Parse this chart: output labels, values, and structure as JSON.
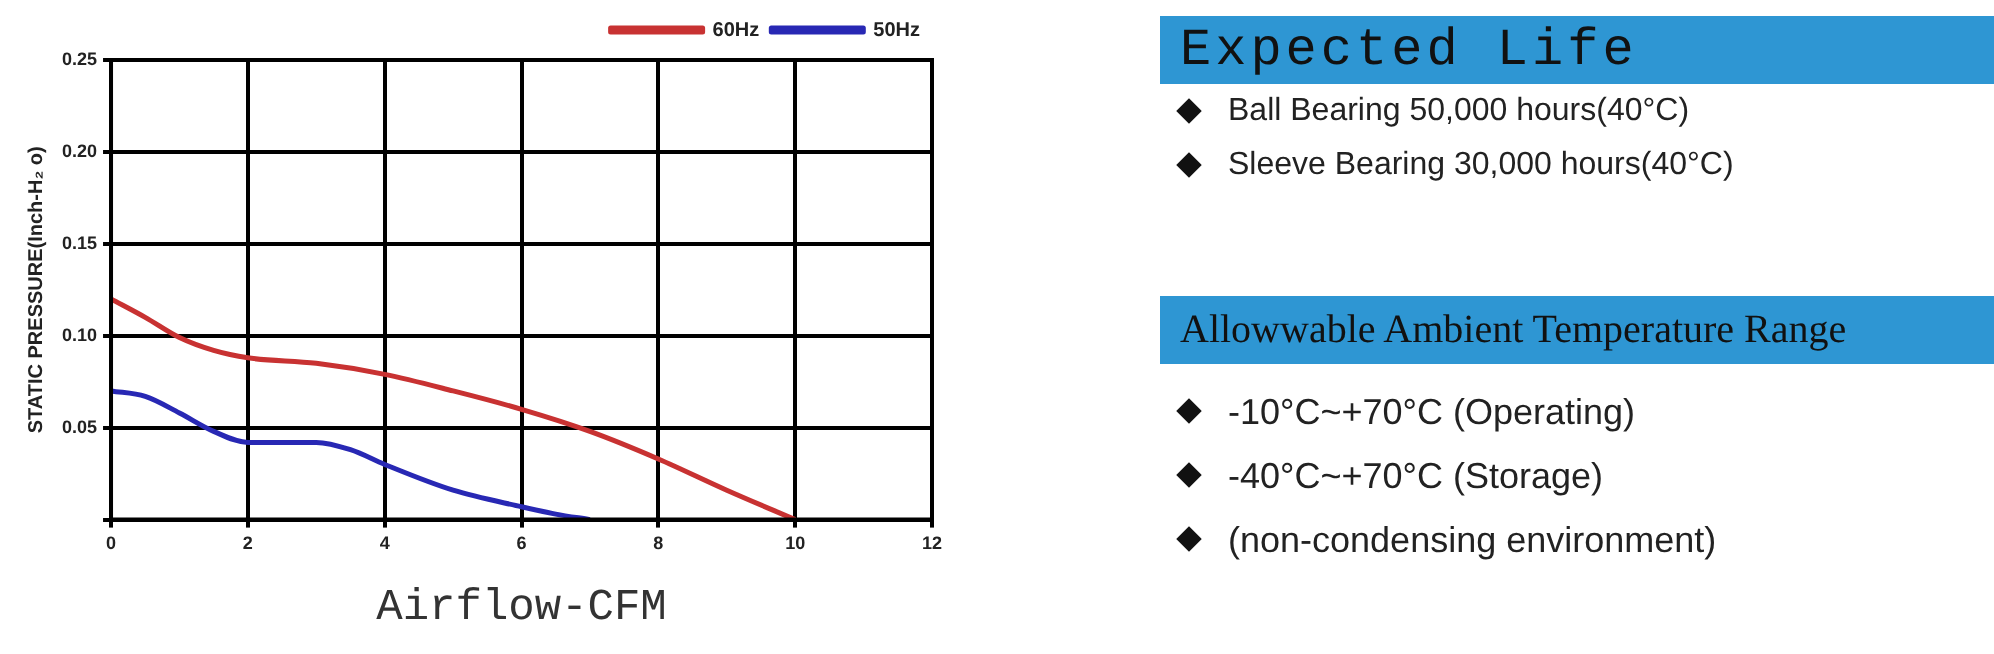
{
  "chart_data": [
    {
      "type": "line",
      "xlabel": "Airflow-CFM",
      "ylabel": "STATIC PRESSURE(Inch-H₂ o)",
      "xlim": [
        0,
        12
      ],
      "xticks": [
        0,
        2,
        4,
        6,
        8,
        10,
        12
      ],
      "ylim": [
        0,
        0.25
      ],
      "yticks": [
        {
          "value": 0,
          "label": null
        },
        0.05,
        {
          "value": 0.1,
          "label": "0.10"
        },
        0.15,
        {
          "value": 0.2,
          "label": "0.20"
        },
        0.25
      ],
      "grid": true,
      "legend": "top right",
      "marker": "none",
      "line_style": "solid",
      "series": [
        {
          "name": "60Hz",
          "color": "#c83232",
          "x": [
            0,
            0.5,
            1,
            1.5,
            2,
            3,
            4,
            5,
            6,
            7,
            8,
            9,
            10
          ],
          "values": [
            0.12,
            0.11,
            0.099,
            0.092,
            0.088,
            0.085,
            0.079,
            0.07,
            0.06,
            0.048,
            0.033,
            0.016,
            0
          ]
        },
        {
          "name": "50Hz",
          "color": "#2828b4",
          "x": [
            0,
            0.5,
            1,
            1.5,
            2,
            3,
            3.5,
            4,
            5,
            6,
            6.5,
            7
          ],
          "values": [
            0.07,
            0.067,
            0.058,
            0.048,
            0.042,
            0.042,
            0.038,
            0.03,
            0.016,
            0.007,
            0.003,
            0
          ]
        }
      ]
    },
    {
      "type": "other",
      "title": "Expected Life",
      "annotations": [
        "Ball Bearing 50,000 hours(40°C)",
        "Sleeve Bearing 30,000 hours(40°C)"
      ]
    },
    {
      "type": "other",
      "title": "Allowwable Ambient Temperature Range",
      "annotations": [
        "-10°C~+70°C (Operating)",
        "-40°C~+70°C (Storage)",
        "(non-condensing environment)"
      ]
    }
  ]
}
